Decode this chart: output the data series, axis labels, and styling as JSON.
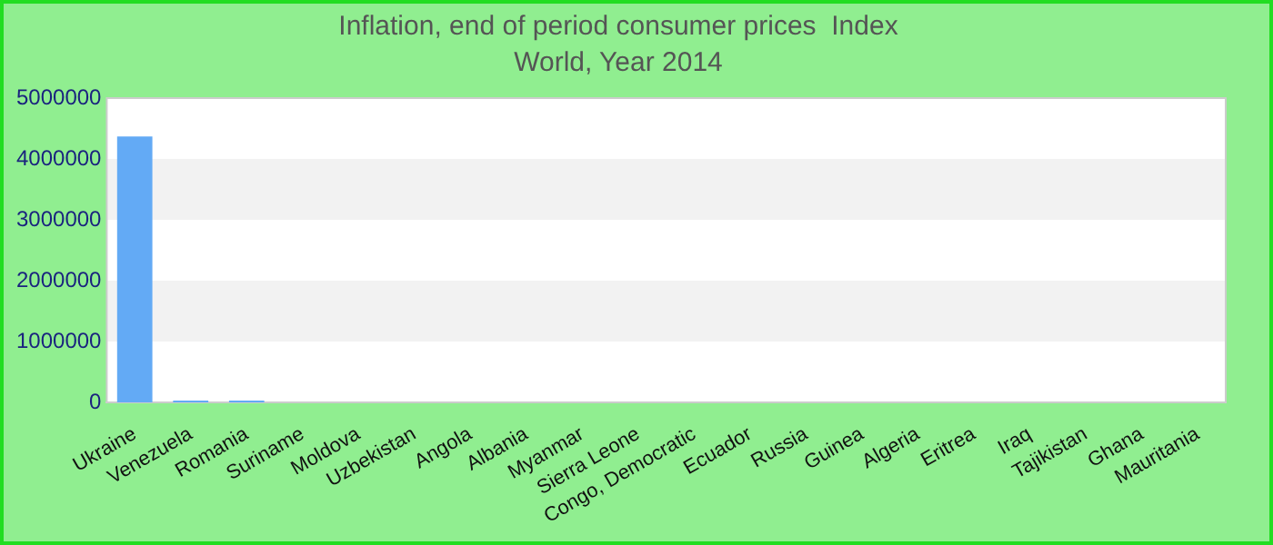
{
  "chart_data": {
    "type": "bar",
    "title": "Inflation, end of period consumer prices  Index",
    "subtitle": "World, Year 2014",
    "categories": [
      "Ukraine",
      "Venezuela",
      "Romania",
      "Suriname",
      "Moldova",
      "Uzbekistan",
      "Angola",
      "Albania",
      "Myanmar",
      "Sierra Leone",
      "Congo, Democratic",
      "Ecuador",
      "Russia",
      "Guinea",
      "Algeria",
      "Eritrea",
      "Iraq",
      "Tajikistan",
      "Ghana",
      "Mauritania"
    ],
    "values": [
      4370000,
      30000,
      30000,
      0,
      0,
      0,
      0,
      0,
      0,
      0,
      0,
      0,
      0,
      0,
      0,
      0,
      0,
      0,
      0,
      0
    ],
    "color": "#63aaf5",
    "ylim": [
      0,
      5000000
    ],
    "yticks": [
      0,
      1000000,
      2000000,
      3000000,
      4000000,
      5000000
    ],
    "legend": false
  }
}
